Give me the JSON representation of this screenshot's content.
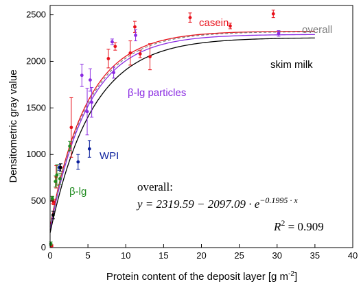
{
  "chart_data": {
    "type": "scatter",
    "xlabel": "Protein content of the deposit layer [g m",
    "xlabel_sup": "-2",
    "xlabel_close": "]",
    "ylabel": "Densitometric gray value",
    "xlim": [
      0,
      40
    ],
    "ylim": [
      0,
      2600
    ],
    "x_ticks": [
      0,
      5,
      10,
      15,
      20,
      25,
      30,
      35,
      40
    ],
    "y_ticks": [
      0,
      500,
      1000,
      1500,
      2000,
      2500
    ],
    "grid": false,
    "series": [
      {
        "name": "casein",
        "color": "#e8101a",
        "points": [
          {
            "x": 0.2,
            "y": 20,
            "err": 10
          },
          {
            "x": 0.3,
            "y": 510,
            "err": 40
          },
          {
            "x": 0.5,
            "y": 490,
            "err": 30
          },
          {
            "x": 0.8,
            "y": 760,
            "err": 120
          },
          {
            "x": 2.8,
            "y": 1290,
            "err": 320
          },
          {
            "x": 7.7,
            "y": 2030,
            "err": 100
          },
          {
            "x": 8.6,
            "y": 2160,
            "err": 40
          },
          {
            "x": 10.6,
            "y": 2090,
            "err": 130
          },
          {
            "x": 11.2,
            "y": 2370,
            "err": 60
          },
          {
            "x": 11.9,
            "y": 2080,
            "err": 40
          },
          {
            "x": 13.2,
            "y": 2050,
            "err": 140
          },
          {
            "x": 18.5,
            "y": 2470,
            "err": 50
          },
          {
            "x": 23.8,
            "y": 2380,
            "err": 30
          },
          {
            "x": 29.5,
            "y": 2510,
            "err": 40
          }
        ]
      },
      {
        "name": "β-lg particles",
        "color": "#8a2be2",
        "points": [
          {
            "x": 4.2,
            "y": 1850,
            "err": 120
          },
          {
            "x": 4.9,
            "y": 1460,
            "err": 250
          },
          {
            "x": 5.3,
            "y": 1800,
            "err": 120
          },
          {
            "x": 5.5,
            "y": 1560,
            "err": 160
          },
          {
            "x": 8.2,
            "y": 2210,
            "err": 30
          },
          {
            "x": 8.4,
            "y": 1880,
            "err": 60
          },
          {
            "x": 11.3,
            "y": 2280,
            "err": 60
          },
          {
            "x": 30.2,
            "y": 2300,
            "err": 30
          }
        ]
      },
      {
        "name": "WPI",
        "color": "#0a1f9c",
        "points": [
          {
            "x": 1.2,
            "y": 860,
            "err": 30
          },
          {
            "x": 3.7,
            "y": 920,
            "err": 80
          },
          {
            "x": 5.2,
            "y": 1060,
            "err": 90
          }
        ]
      },
      {
        "name": "β-lg",
        "color": "#1f8a1f",
        "points": [
          {
            "x": 0.1,
            "y": 40,
            "err": 20
          },
          {
            "x": 0.3,
            "y": 530,
            "err": 20
          },
          {
            "x": 0.7,
            "y": 710,
            "err": 60
          },
          {
            "x": 0.9,
            "y": 780,
            "err": 110
          },
          {
            "x": 1.3,
            "y": 740,
            "err": 60
          },
          {
            "x": 2.6,
            "y": 1090,
            "err": 50
          }
        ]
      },
      {
        "name": "skim milk",
        "color": "#000000",
        "points": [
          {
            "x": 0.4,
            "y": 350,
            "err": 40
          },
          {
            "x": 1.4,
            "y": 860,
            "err": 40
          }
        ]
      }
    ],
    "fits": [
      {
        "name": "casein",
        "color": "#e8101a",
        "dash": false,
        "a": 2325,
        "b": 2097,
        "k": 0.205
      },
      {
        "name": "β-lg particles",
        "color": "#8a2be2",
        "dash": false,
        "a": 2290,
        "b": 2097,
        "k": 0.2
      },
      {
        "name": "overall",
        "color": "#808080",
        "dash": true,
        "a": 2319.59,
        "b": 2097.09,
        "k": 0.1995
      },
      {
        "name": "skim milk",
        "color": "#000000",
        "dash": false,
        "a": 2255,
        "b": 2097,
        "k": 0.18
      }
    ],
    "annotations": {
      "casein": "casein",
      "overall": "overall",
      "skim_milk": "skim milk",
      "beta_lg_particles": "β-lg particles",
      "wpi": "WPI",
      "beta_lg": "β-lg"
    },
    "equation": {
      "heading": "overall:",
      "formula_prefix": "y = 2319.59 − 2097.09 · e",
      "formula_exponent": "−0.1995 · x",
      "r2_label": "R",
      "r2_sup": "2",
      "r2_value": " = 0.909"
    }
  }
}
